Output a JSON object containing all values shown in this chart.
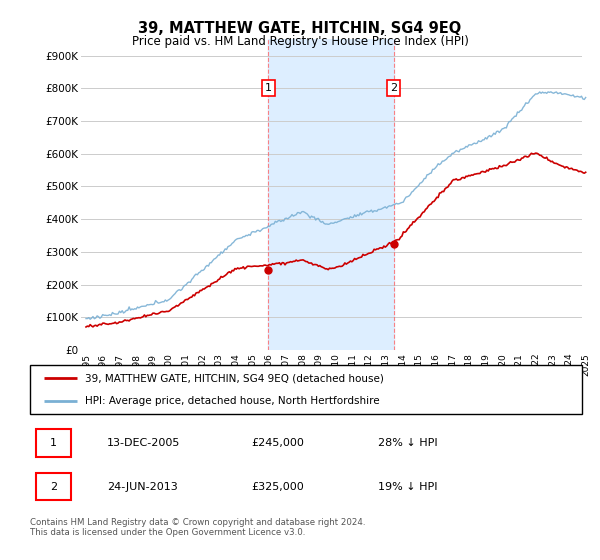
{
  "title": "39, MATTHEW GATE, HITCHIN, SG4 9EQ",
  "subtitle": "Price paid vs. HM Land Registry's House Price Index (HPI)",
  "ylabel_ticks": [
    "£0",
    "£100K",
    "£200K",
    "£300K",
    "£400K",
    "£500K",
    "£600K",
    "£700K",
    "£800K",
    "£900K"
  ],
  "ytick_vals": [
    0,
    100000,
    200000,
    300000,
    400000,
    500000,
    600000,
    700000,
    800000,
    900000
  ],
  "ylim": [
    0,
    950000
  ],
  "xlim_start": 1994.7,
  "xlim_end": 2025.5,
  "hpi_color": "#7ab0d4",
  "price_color": "#cc0000",
  "sale1_x": 2005.95,
  "sale1_y": 245000,
  "sale1_label": "1",
  "sale2_x": 2013.48,
  "sale2_y": 325000,
  "sale2_label": "2",
  "shade_color": "#ddeeff",
  "legend_line1": "39, MATTHEW GATE, HITCHIN, SG4 9EQ (detached house)",
  "legend_line2": "HPI: Average price, detached house, North Hertfordshire",
  "table_row1": [
    "1",
    "13-DEC-2005",
    "£245,000",
    "28% ↓ HPI"
  ],
  "table_row2": [
    "2",
    "24-JUN-2013",
    "£325,000",
    "19% ↓ HPI"
  ],
  "footnote": "Contains HM Land Registry data © Crown copyright and database right 2024.\nThis data is licensed under the Open Government Licence v3.0.",
  "grid_color": "#cccccc",
  "bg_color": "#ffffff"
}
